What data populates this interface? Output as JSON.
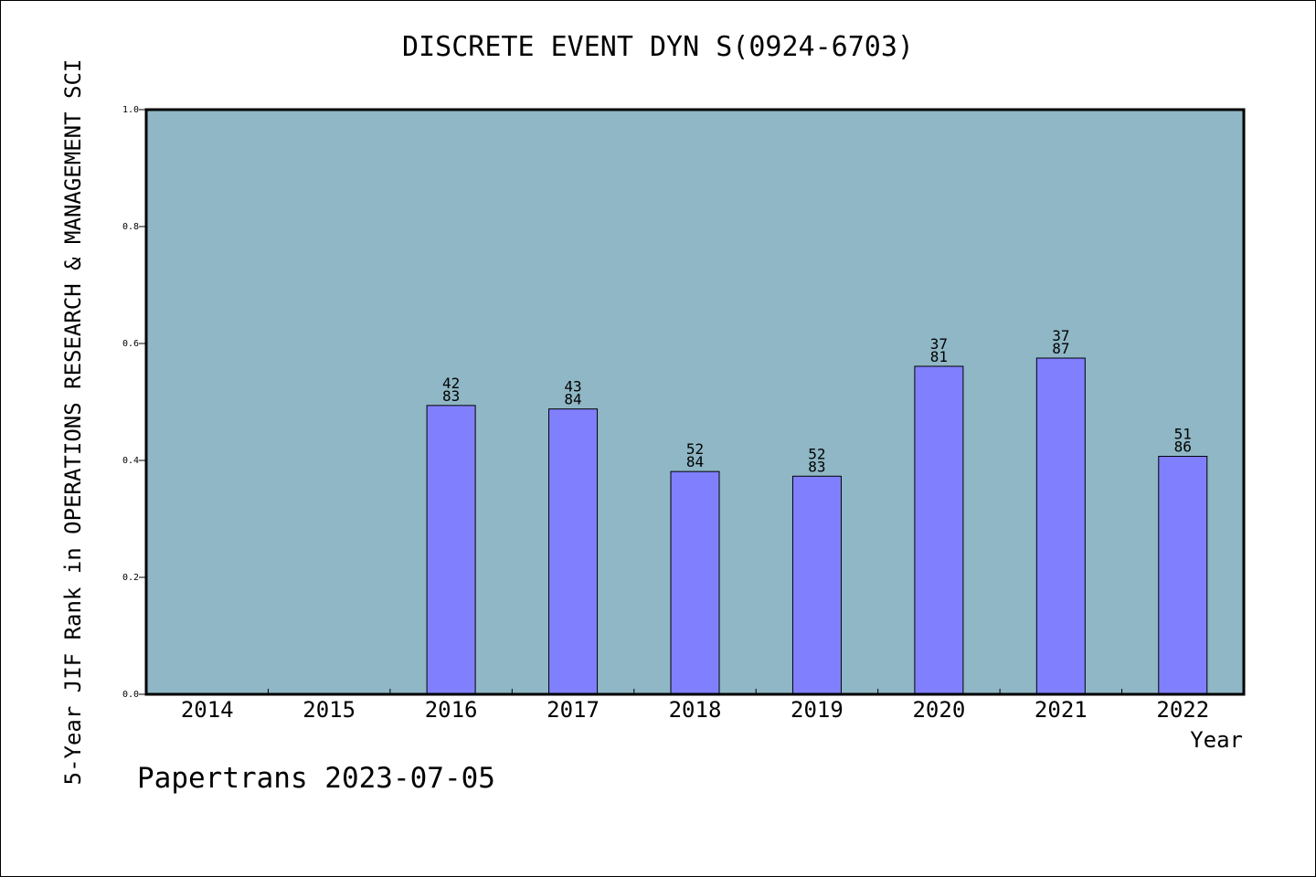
{
  "chart_data": {
    "type": "bar",
    "title": "DISCRETE EVENT DYN S(0924-6703)",
    "xlabel": "Year",
    "ylabel": "5-Year JIF Rank in OPERATIONS RESEARCH & MANAGEMENT SCI",
    "ylim": [
      0,
      1.0
    ],
    "yticks": [
      "0.0",
      "0.2",
      "0.4",
      "0.6",
      "0.8",
      "1.0"
    ],
    "categories": [
      "2014",
      "2015",
      "2016",
      "2017",
      "2018",
      "2019",
      "2020",
      "2021",
      "2022"
    ],
    "values": [
      null,
      null,
      0.494,
      0.488,
      0.381,
      0.373,
      0.561,
      0.575,
      0.407
    ],
    "label_top": [
      "",
      "",
      "42",
      "43",
      "52",
      "52",
      "37",
      "37",
      "51"
    ],
    "label_bottom": [
      "",
      "",
      "83",
      "84",
      "84",
      "83",
      "81",
      "87",
      "86"
    ],
    "grid": false,
    "colors": {
      "plot_background": "#8fb7c5",
      "bar_fill": "#8080ff",
      "bar_stroke": "#000000"
    }
  },
  "footer": {
    "text": "Papertrans 2023-07-05"
  }
}
